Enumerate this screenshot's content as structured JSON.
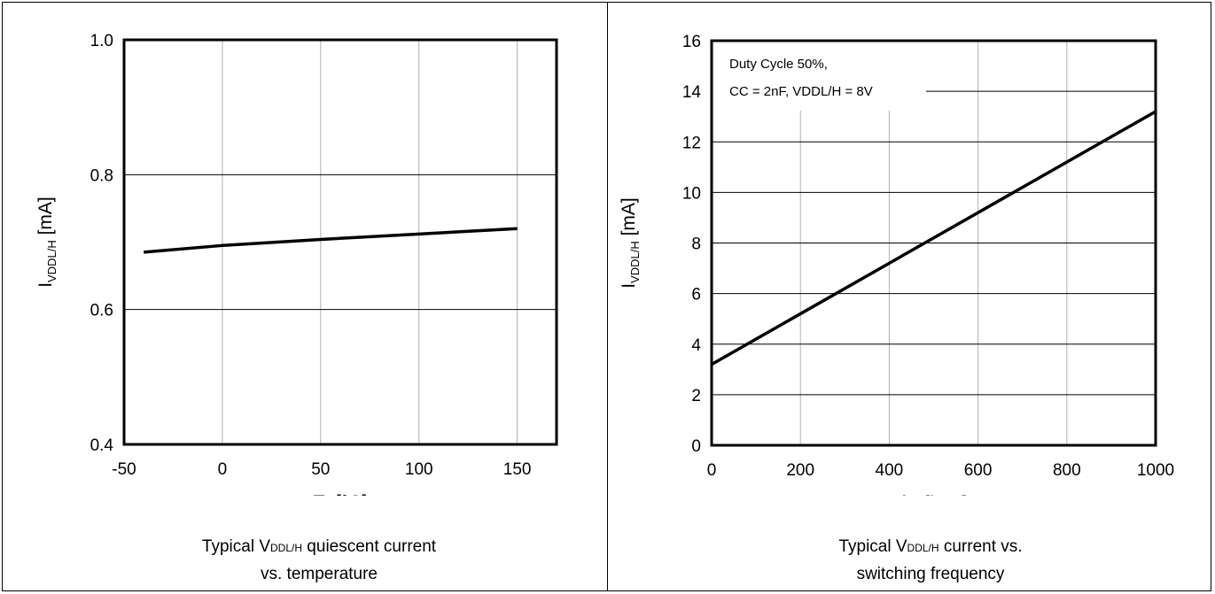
{
  "chart_data": [
    {
      "type": "line",
      "xlabel_main": "T",
      "xlabel_sub": "J",
      "xlabel_unit": " [°C]",
      "ylabel_main": "I",
      "ylabel_sub": "VDDL/H",
      "ylabel_unit": " [mA]",
      "xlim": [
        -50,
        170
      ],
      "ylim": [
        0.4,
        1.0
      ],
      "xticks": [
        -50,
        0,
        50,
        100,
        150
      ],
      "xtick_labels": [
        "-50",
        "0",
        "50",
        "100",
        "150"
      ],
      "yticks": [
        0.4,
        0.6,
        0.8,
        1.0
      ],
      "ytick_labels": [
        "0.4",
        "0.6",
        "0.8",
        "1.0"
      ],
      "grid": true,
      "series": [
        {
          "x": [
            -40,
            0,
            50,
            100,
            150
          ],
          "y": [
            0.685,
            0.695,
            0.704,
            0.712,
            0.72
          ]
        }
      ],
      "caption_line1_a": "Typical V",
      "caption_line1_sub": "DDL/H",
      "caption_line1_b": " quiescent current",
      "caption_line2": "vs. temperature"
    },
    {
      "type": "line",
      "xlabel_main": "f",
      "xlabel_sub": "sw",
      "xlabel_unit": " [kHz]",
      "ylabel_main": "I",
      "ylabel_sub": "VDDL/H",
      "ylabel_unit": " [mA]",
      "xlim": [
        0,
        1000
      ],
      "ylim": [
        0,
        16
      ],
      "xticks": [
        0,
        200,
        400,
        600,
        800,
        1000
      ],
      "xtick_labels": [
        "0",
        "200",
        "400",
        "600",
        "800",
        "1000"
      ],
      "yticks": [
        0,
        2,
        4,
        6,
        8,
        10,
        12,
        14,
        16
      ],
      "ytick_labels": [
        "0",
        "2",
        "4",
        "6",
        "8",
        "10",
        "12",
        "14",
        "16"
      ],
      "grid": true,
      "annotation_line1": "Duty Cycle 50%,",
      "annotation_line2": "CC = 2nF,  VDDL/H = 8V",
      "series": [
        {
          "x": [
            0,
            1000
          ],
          "y": [
            3.2,
            13.2
          ]
        }
      ],
      "caption_line1_a": "Typical V",
      "caption_line1_sub": "DDL/H",
      "caption_line1_b": " current vs.",
      "caption_line2": "switching frequency"
    }
  ]
}
